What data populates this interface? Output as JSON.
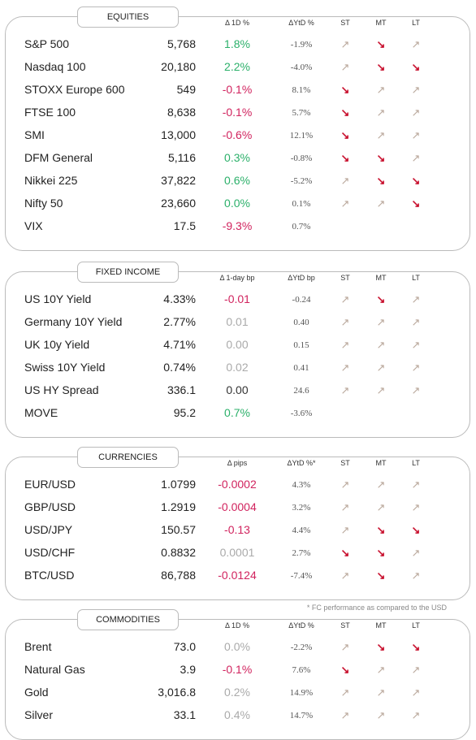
{
  "sections": [
    {
      "title": "EQUITIES",
      "delta_header": "Δ 1D %",
      "ytd_header": "ΔYtD %",
      "st_header": "ST",
      "mt_header": "MT",
      "lt_header": "LT",
      "rows": [
        {
          "name": "S&P 500",
          "value": "5,768",
          "delta": "1.8%",
          "delta_color": "#2bb06a",
          "ytd": "-1.9%",
          "st": "↗",
          "mt": "↘",
          "lt": "↗"
        },
        {
          "name": "Nasdaq 100",
          "value": "20,180",
          "delta": "2.2%",
          "delta_color": "#2bb06a",
          "ytd": "-4.0%",
          "st": "↗",
          "mt": "↘",
          "lt": "↘"
        },
        {
          "name": "STOXX Europe 600",
          "value": "549",
          "delta": "-0.1%",
          "delta_color": "#d1235e",
          "ytd": "8.1%",
          "st": "↘",
          "mt": "↗",
          "lt": "↗"
        },
        {
          "name": "FTSE 100",
          "value": "8,638",
          "delta": "-0.1%",
          "delta_color": "#d1235e",
          "ytd": "5.7%",
          "st": "↘",
          "mt": "↗",
          "lt": "↗"
        },
        {
          "name": "SMI",
          "value": "13,000",
          "delta": "-0.6%",
          "delta_color": "#d1235e",
          "ytd": "12.1%",
          "st": "↘",
          "mt": "↗",
          "lt": "↗"
        },
        {
          "name": "DFM General",
          "value": "5,116",
          "delta": "0.3%",
          "delta_color": "#2bb06a",
          "ytd": "-0.8%",
          "st": "↘",
          "mt": "↘",
          "lt": "↗"
        },
        {
          "name": "Nikkei 225",
          "value": "37,822",
          "delta": "0.6%",
          "delta_color": "#2bb06a",
          "ytd": "-5.2%",
          "st": "↗",
          "mt": "↘",
          "lt": "↘"
        },
        {
          "name": "Nifty  50",
          "value": "23,660",
          "delta": "0.0%",
          "delta_color": "#2bb06a",
          "ytd": "0.1%",
          "st": "↗",
          "mt": "↗",
          "lt": "↘"
        },
        {
          "name": "VIX",
          "value": "17.5",
          "delta": "-9.3%",
          "delta_color": "#d1235e",
          "ytd": "0.7%"
        }
      ]
    },
    {
      "title": "FIXED INCOME",
      "delta_header": "Δ 1-day bp",
      "ytd_header": "ΔYtD bp",
      "st_header": "ST",
      "mt_header": "MT",
      "lt_header": "LT",
      "rows": [
        {
          "name": "US 10Y Yield",
          "value": "4.33%",
          "delta": "-0.01",
          "delta_color": "#d1235e",
          "ytd": "-0.24",
          "st": "↗",
          "mt": "↘",
          "lt": "↗"
        },
        {
          "name": "Germany 10Y Yield",
          "value": "2.77%",
          "delta": "0.01",
          "delta_color": "#aaaaaa",
          "ytd": "0.40",
          "st": "↗",
          "mt": "↗",
          "lt": "↗"
        },
        {
          "name": "UK 10y Yield",
          "value": "4.71%",
          "delta": "0.00",
          "delta_color": "#aaaaaa",
          "ytd": "0.15",
          "st": "↗",
          "mt": "↗",
          "lt": "↗"
        },
        {
          "name": "Swiss 10Y Yield",
          "value": "0.74%",
          "delta": "0.02",
          "delta_color": "#aaaaaa",
          "ytd": "0.41",
          "st": "↗",
          "mt": "↗",
          "lt": "↗"
        },
        {
          "name": "US HY Spread",
          "value": "336.1",
          "delta": "0.00",
          "delta_color": "#333333",
          "ytd": "24.6",
          "st": "↗",
          "mt": "↗",
          "lt": "↗"
        },
        {
          "name": "MOVE",
          "value": "95.2",
          "delta": "0.7%",
          "delta_color": "#2bb06a",
          "ytd": "-3.6%"
        }
      ]
    },
    {
      "title": "CURRENCIES",
      "delta_header": "Δ pips",
      "ytd_header": "ΔYtD %*",
      "st_header": "ST",
      "mt_header": "MT",
      "lt_header": "LT",
      "footnote": "* FC performance as compared to the USD",
      "rows": [
        {
          "name": "EUR/USD",
          "value": "1.0799",
          "delta": "-0.0002",
          "delta_color": "#d1235e",
          "ytd": "4.3%",
          "st": "↗",
          "mt": "↗",
          "lt": "↗"
        },
        {
          "name": "GBP/USD",
          "value": "1.2919",
          "delta": "-0.0004",
          "delta_color": "#d1235e",
          "ytd": "3.2%",
          "st": "↗",
          "mt": "↗",
          "lt": "↗"
        },
        {
          "name": "USD/JPY",
          "value": "150.57",
          "delta": "-0.13",
          "delta_color": "#d1235e",
          "ytd": "4.4%",
          "st": "↗",
          "mt": "↘",
          "lt": "↘"
        },
        {
          "name": "USD/CHF",
          "value": "0.8832",
          "delta": "0.0001",
          "delta_color": "#aaaaaa",
          "ytd": "2.7%",
          "st": "↘",
          "mt": "↘",
          "lt": "↗"
        },
        {
          "name": "BTC/USD",
          "value": "86,788",
          "delta": "-0.0124",
          "delta_color": "#d1235e",
          "ytd": "-7.4%",
          "st": "↗",
          "mt": "↘",
          "lt": "↗"
        }
      ]
    },
    {
      "title": "COMMODITIES",
      "delta_header": "Δ 1D %",
      "ytd_header": "ΔYtD %",
      "st_header": "ST",
      "mt_header": "MT",
      "lt_header": "LT",
      "rows": [
        {
          "name": "Brent",
          "value": "73.0",
          "delta": "0.0%",
          "delta_color": "#aaaaaa",
          "ytd": "-2.2%",
          "st": "↗",
          "mt": "↘",
          "lt": "↘"
        },
        {
          "name": "Natural Gas",
          "value": "3.9",
          "delta": "-0.1%",
          "delta_color": "#d1235e",
          "ytd": "7.6%",
          "st": "↘",
          "mt": "↗",
          "lt": "↗"
        },
        {
          "name": "Gold",
          "value": "3,016.8",
          "delta": "0.2%",
          "delta_color": "#aaaaaa",
          "ytd": "14.9%",
          "st": "↗",
          "mt": "↗",
          "lt": "↗"
        },
        {
          "name": "Silver",
          "value": "33.1",
          "delta": "0.4%",
          "delta_color": "#aaaaaa",
          "ytd": "14.7%",
          "st": "↗",
          "mt": "↗",
          "lt": "↗"
        }
      ]
    }
  ]
}
